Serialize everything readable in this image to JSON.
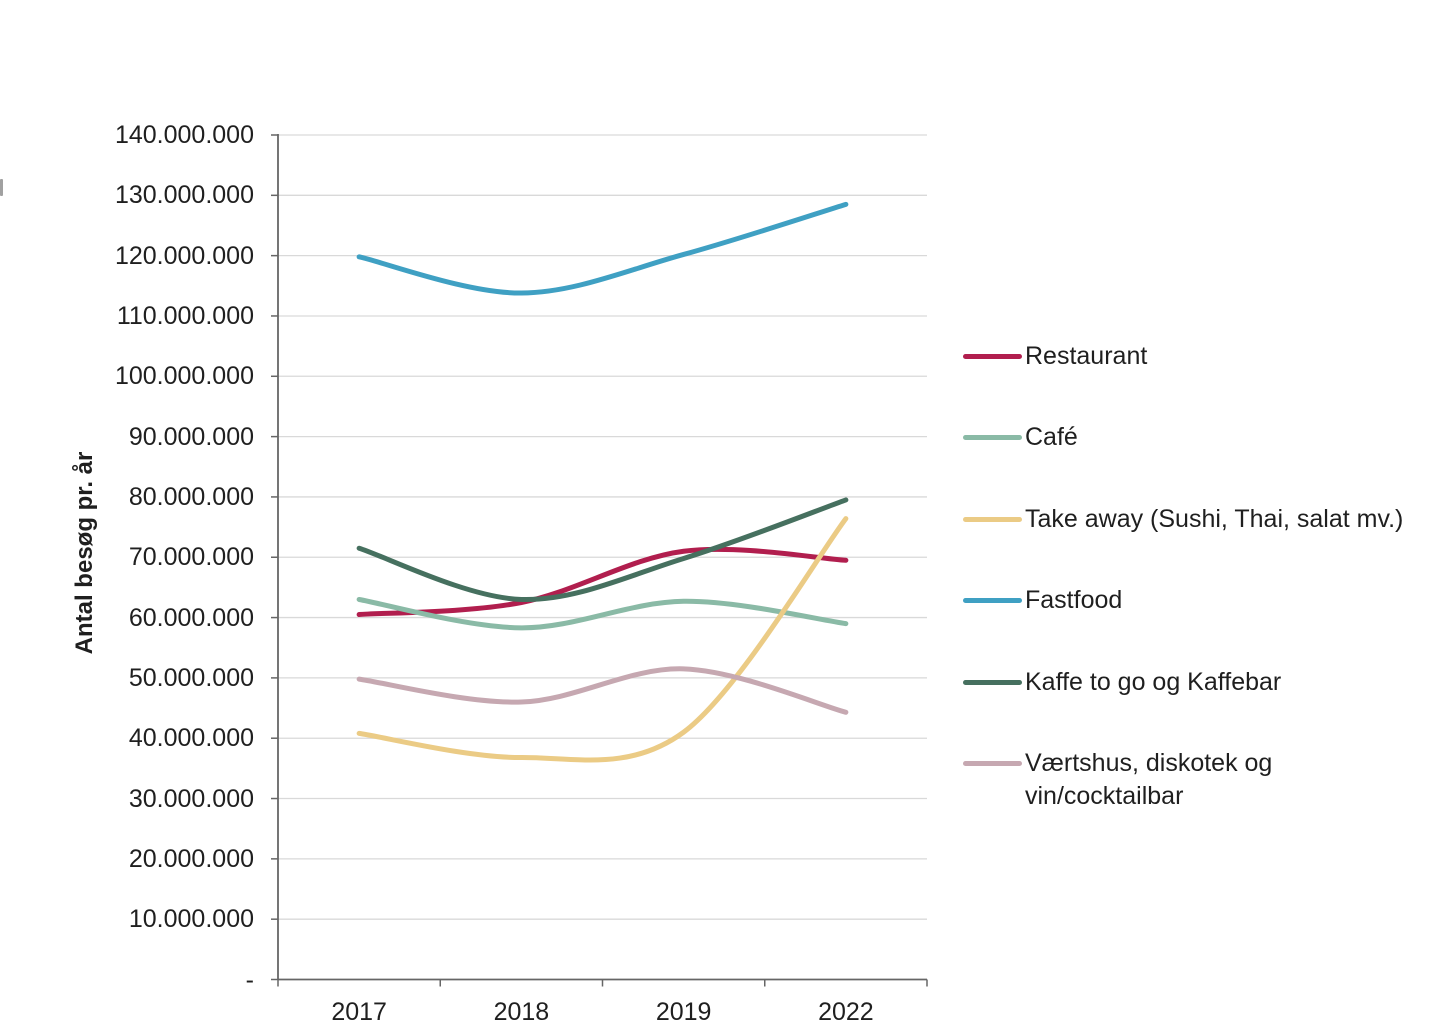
{
  "chart_data": {
    "type": "line",
    "line_style": "smooth",
    "title": "",
    "xlabel": "",
    "ylabel": "Antal besøg pr. år",
    "categories": [
      "2017",
      "2018",
      "2019",
      "2022"
    ],
    "series": [
      {
        "name": "Restaurant",
        "color": "#B11E4E",
        "values": [
          60500000,
          62500000,
          71000000,
          69500000
        ]
      },
      {
        "name": "Café",
        "color": "#8ABAA6",
        "values": [
          63000000,
          58300000,
          62700000,
          59000000
        ]
      },
      {
        "name": "Take away (Sushi, Thai, salat mv.)",
        "color": "#EBCB85",
        "values": [
          40800000,
          36800000,
          41000000,
          76400000
        ]
      },
      {
        "name": "Fastfood",
        "color": "#3FA0C3",
        "values": [
          119800000,
          113800000,
          120200000,
          128500000
        ]
      },
      {
        "name": "Kaffe to go og Kaffebar",
        "color": "#46705F",
        "values": [
          71500000,
          63000000,
          69800000,
          79500000
        ]
      },
      {
        "name": "Værtshus, diskotek og vin/cocktailbar",
        "color": "#C6A8B1",
        "values": [
          49800000,
          46000000,
          51500000,
          44300000
        ]
      }
    ],
    "ylim": [
      0,
      140000000
    ],
    "ytick_step": 10000000,
    "ytick_labels": [
      "-",
      "10.000.000",
      "20.000.000",
      "30.000.000",
      "40.000.000",
      "50.000.000",
      "60.000.000",
      "70.000.000",
      "80.000.000",
      "90.000.000",
      "100.000.000",
      "110.000.000",
      "120.000.000",
      "130.000.000",
      "140.000.000"
    ],
    "grid": true,
    "legend_position": "right",
    "axis_color": "#666666",
    "gridline_color": "#D9D9D9"
  }
}
